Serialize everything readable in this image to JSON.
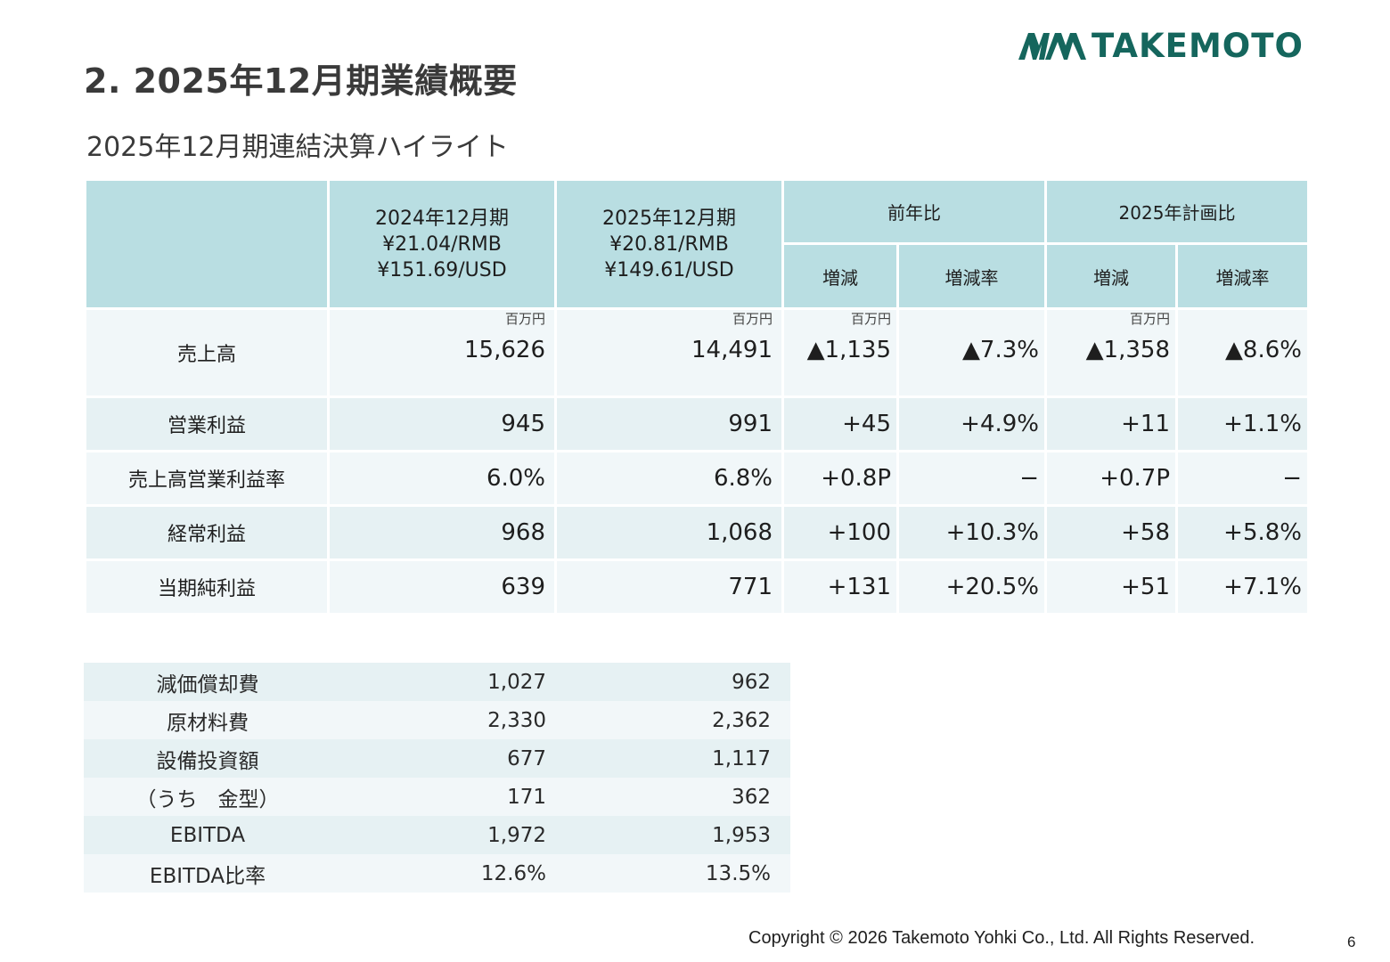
{
  "header": {
    "title": "2. 2025年12月期業績概要",
    "subtitle": "2025年12月期連結決算ハイライト",
    "logo_text": "TAKEMOTO",
    "brand_color": "#15665d"
  },
  "table": {
    "col_2024": [
      "2024年12月期",
      "¥21.04/RMB",
      "¥151.69/USD"
    ],
    "col_2025": [
      "2025年12月期",
      "¥20.81/RMB",
      "¥149.61/USD"
    ],
    "group_yoy": "前年比",
    "group_plan": "2025年計画比",
    "sub_change": "増減",
    "sub_rate": "増減率",
    "unit": "百万円",
    "header_color": "#b9dee2",
    "rows": [
      {
        "label": "売上高",
        "v2024": "15,626",
        "v2025": "14,491",
        "yoy_change": "▲1,135",
        "yoy_rate": "▲7.3%",
        "plan_change": "▲1,358",
        "plan_rate": "▲8.6%"
      },
      {
        "label": "営業利益",
        "v2024": "945",
        "v2025": "991",
        "yoy_change": "+45",
        "yoy_rate": "+4.9%",
        "plan_change": "+11",
        "plan_rate": "+1.1%"
      },
      {
        "label": "売上高営業利益率",
        "v2024": "6.0%",
        "v2025": "6.8%",
        "yoy_change": "+0.8P",
        "yoy_rate": "−",
        "plan_change": "+0.7P",
        "plan_rate": "−"
      },
      {
        "label": "経常利益",
        "v2024": "968",
        "v2025": "1,068",
        "yoy_change": "+100",
        "yoy_rate": "+10.3%",
        "plan_change": "+58",
        "plan_rate": "+5.8%"
      },
      {
        "label": "当期純利益",
        "v2024": "639",
        "v2025": "771",
        "yoy_change": "+131",
        "yoy_rate": "+20.5%",
        "plan_change": "+51",
        "plan_rate": "+7.1%"
      }
    ]
  },
  "sub_table": {
    "rows": [
      {
        "label": "減価償却費",
        "v2024": "1,027",
        "v2025": "962"
      },
      {
        "label": "原材料費",
        "v2024": "2,330",
        "v2025": "2,362"
      },
      {
        "label": "設備投資額",
        "v2024": "677",
        "v2025": "1,117"
      },
      {
        "label": "（うち　金型）",
        "v2024": "171",
        "v2025": "362"
      },
      {
        "label": "EBITDA",
        "v2024": "1,972",
        "v2025": "1,953"
      },
      {
        "label": "EBITDA比率",
        "v2024": "12.6%",
        "v2025": "13.5%"
      }
    ]
  },
  "footer": {
    "copyright": "Copyright © 2026 Takemoto Yohki Co., Ltd. All Rights Reserved.",
    "page_number": "6"
  }
}
